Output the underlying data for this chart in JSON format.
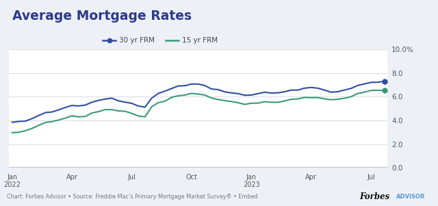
{
  "title": "Average Mortgage Rates",
  "title_color": "#2d3a8c",
  "legend_labels": [
    "30 yr FRM",
    "15 yr FRM"
  ],
  "line_colors": [
    "#2e4da0",
    "#3a9a72"
  ],
  "background_color": "#edf1f7",
  "plot_bg_color": "#ffffff",
  "footer_text": "Chart: Forbes Advisor • Source: Freddie Mac’s Primary Mortgage Market Survey® • Embed",
  "footer_brand": "Forbes",
  "footer_advisor": "ADVISOR",
  "footer_advisor_color": "#5b9bd5",
  "ylim": [
    0,
    10
  ],
  "yticks": [
    0.0,
    2.0,
    4.0,
    6.0,
    8.0,
    10.0
  ],
  "grid_color": "#d8dde6",
  "axis_line_color": "#b0b8c8",
  "rate_30yr": [
    3.85,
    3.92,
    3.95,
    4.16,
    4.42,
    4.67,
    4.72,
    4.9,
    5.1,
    5.27,
    5.23,
    5.3,
    5.54,
    5.7,
    5.81,
    5.89,
    5.66,
    5.55,
    5.45,
    5.22,
    5.13,
    5.89,
    6.29,
    6.48,
    6.7,
    6.92,
    6.94,
    7.08,
    7.08,
    6.95,
    6.66,
    6.61,
    6.42,
    6.33,
    6.27,
    6.13,
    6.15,
    6.27,
    6.39,
    6.32,
    6.34,
    6.43,
    6.57,
    6.57,
    6.73,
    6.79,
    6.73,
    6.57,
    6.39,
    6.43,
    6.57,
    6.71,
    6.96,
    7.09,
    7.22,
    7.23,
    7.31
  ],
  "rate_15yr": [
    2.97,
    3.01,
    3.14,
    3.33,
    3.59,
    3.83,
    3.91,
    4.04,
    4.2,
    4.4,
    4.31,
    4.34,
    4.63,
    4.75,
    4.92,
    4.92,
    4.81,
    4.78,
    4.6,
    4.38,
    4.31,
    5.16,
    5.51,
    5.63,
    5.96,
    6.09,
    6.15,
    6.29,
    6.23,
    6.15,
    5.9,
    5.77,
    5.68,
    5.6,
    5.5,
    5.36,
    5.46,
    5.47,
    5.59,
    5.54,
    5.54,
    5.65,
    5.79,
    5.82,
    5.95,
    5.93,
    5.94,
    5.83,
    5.76,
    5.79,
    5.88,
    6.01,
    6.28,
    6.39,
    6.54,
    6.55,
    6.54
  ],
  "n_points": 57,
  "tick_positions": [
    0,
    9,
    18,
    27,
    36,
    45,
    54
  ],
  "tick_labels": [
    "Jan\n2022",
    "Apr",
    "Jul",
    "Oct",
    "Jan\n2023",
    "Apr",
    "Jul"
  ]
}
